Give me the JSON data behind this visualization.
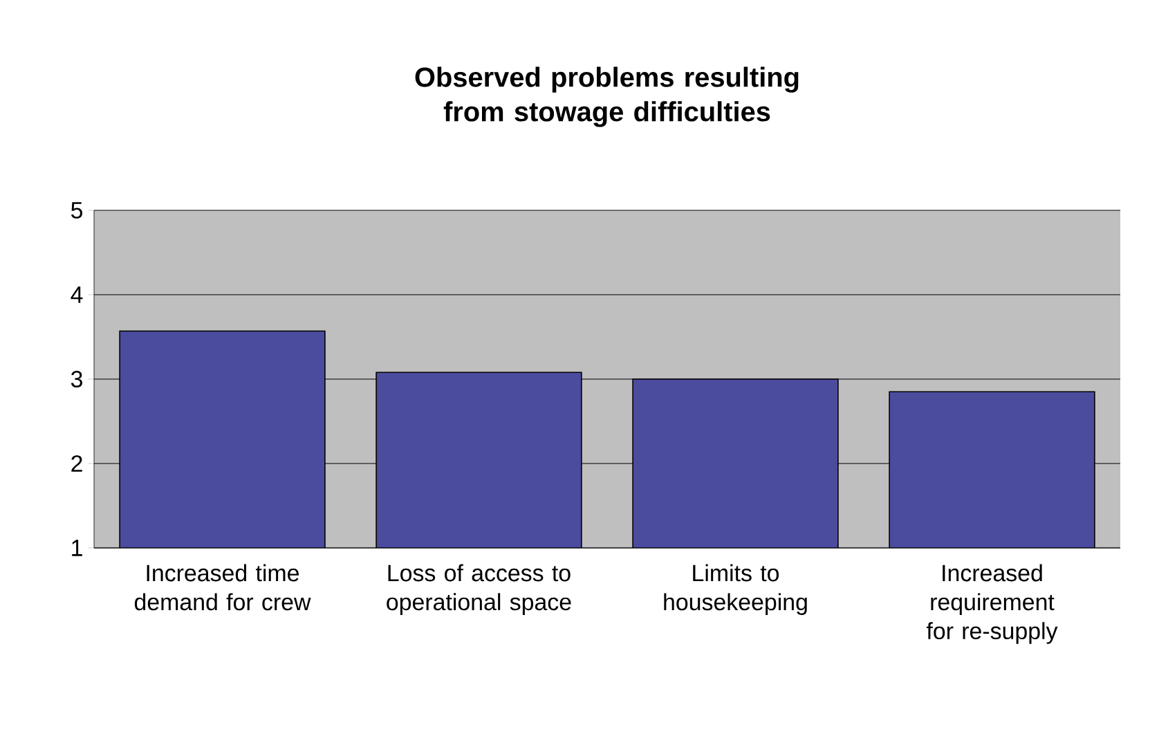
{
  "chart_data": {
    "type": "bar",
    "title": "Observed problems resulting from stowage difficulties",
    "categories": [
      "Increased time demand for crew",
      "Loss of access to operational space",
      "Limits to housekeeping",
      "Increased requirement for re-supply"
    ],
    "values": [
      3.57,
      3.08,
      3.0,
      2.85
    ],
    "color": "#4b4c9e",
    "ylim": [
      1,
      5
    ],
    "yticks": [
      1,
      2,
      3,
      4,
      5
    ],
    "grid": "y"
  }
}
